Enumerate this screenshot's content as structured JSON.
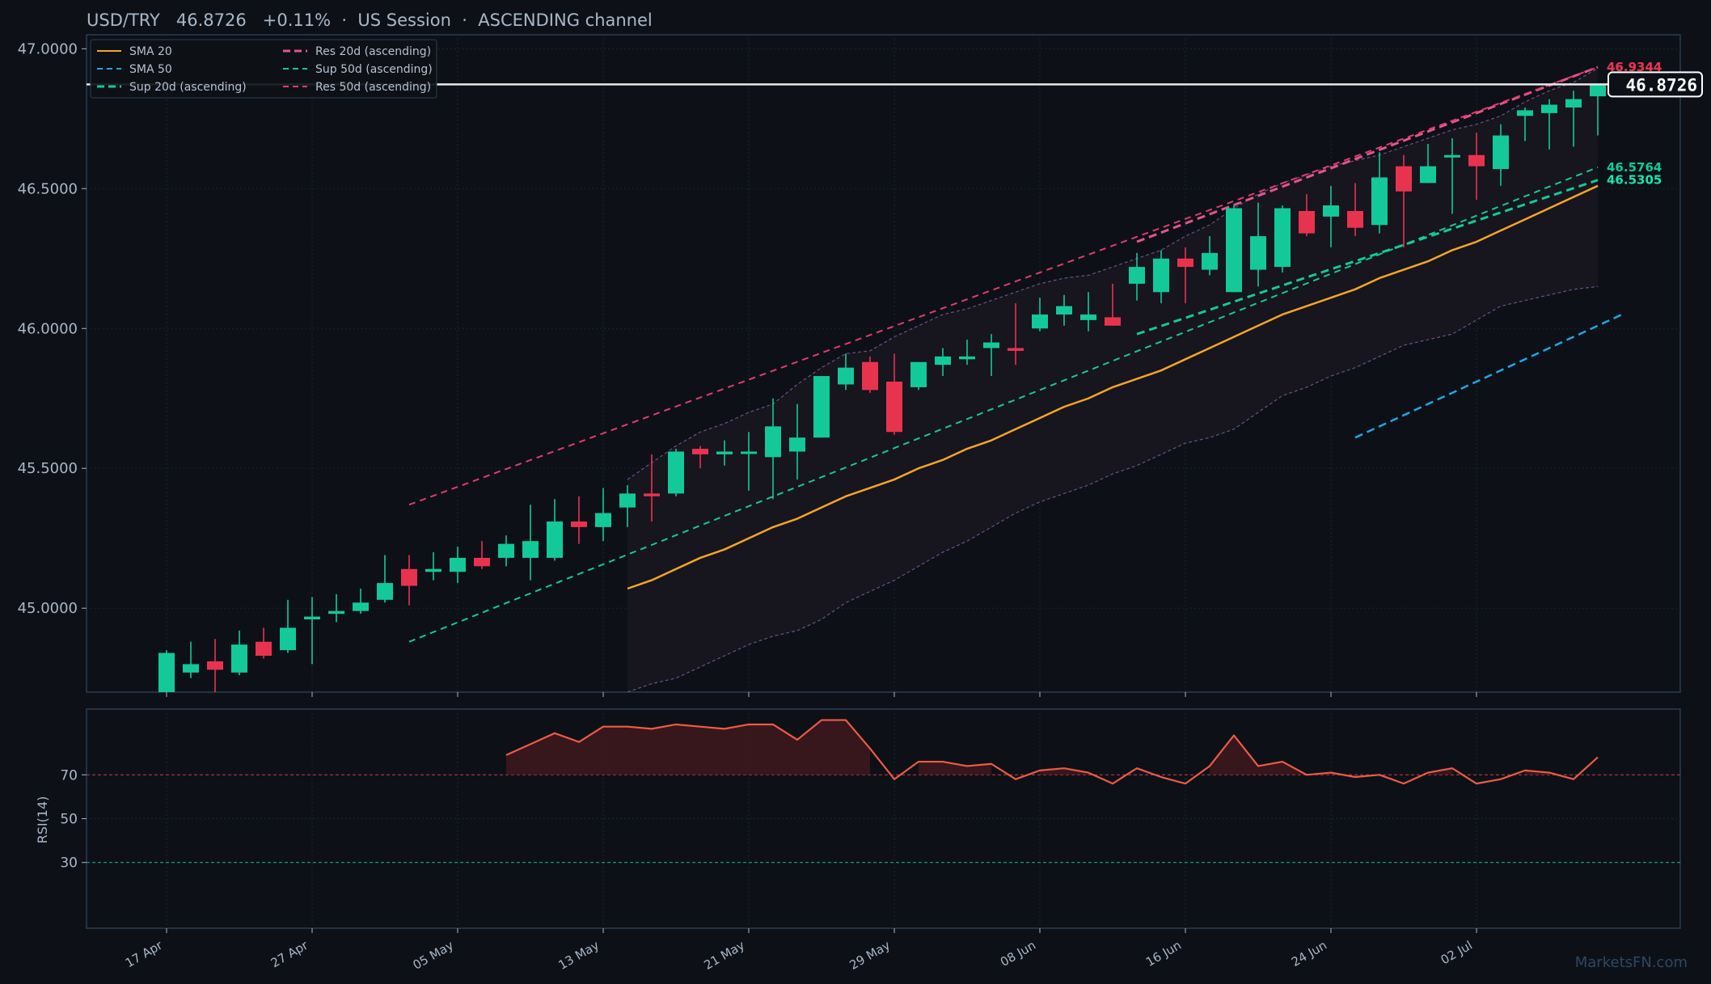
{
  "header": {
    "title": "USD/TRY   46.8726   +0.11%  ·  US Session  ·  ASCENDING channel"
  },
  "watermark": "MarketsFN.com",
  "colors": {
    "background": "#0d1117",
    "up": "#13c99a",
    "down": "#e8334f",
    "sma20": "#f5a623",
    "sma50": "#1ea7e8",
    "support": "#13c99a",
    "resistance": "#e23b6a",
    "rsi": "#ef5a43",
    "bands": "#6b4f8c",
    "last_price_line": "#e8e8e8"
  },
  "chart_data": [
    {
      "type": "candlestick",
      "title": "USD/TRY   46.8726   +0.11%  ·  US Session  ·  ASCENDING channel",
      "ylim": [
        44.7,
        47.05
      ],
      "y_ticks": [
        "45.0000",
        "45.5000",
        "46.0000",
        "46.5000",
        "47.0000"
      ],
      "y_tick_values": [
        45.0,
        45.5,
        46.0,
        46.5,
        47.0
      ],
      "x_ticks": [
        "17 Apr",
        "27 Apr",
        "05 May",
        "13 May",
        "21 May",
        "29 May",
        "08 Jun",
        "16 Jun",
        "24 Jun",
        "02 Jul"
      ],
      "x_tick_index": [
        0,
        6,
        12,
        18,
        24,
        30,
        36,
        42,
        48,
        54
      ],
      "grid": true,
      "legend_position": "top-left",
      "candles": [
        {
          "o": 44.7,
          "h": 44.85,
          "l": 44.68,
          "c": 44.84
        },
        {
          "o": 44.77,
          "h": 44.88,
          "l": 44.75,
          "c": 44.8
        },
        {
          "o": 44.81,
          "h": 44.89,
          "l": 44.7,
          "c": 44.78
        },
        {
          "o": 44.77,
          "h": 44.92,
          "l": 44.76,
          "c": 44.87
        },
        {
          "o": 44.88,
          "h": 44.93,
          "l": 44.82,
          "c": 44.83
        },
        {
          "o": 44.85,
          "h": 45.03,
          "l": 44.84,
          "c": 44.93
        },
        {
          "o": 44.96,
          "h": 45.04,
          "l": 44.8,
          "c": 44.97
        },
        {
          "o": 44.98,
          "h": 45.05,
          "l": 44.95,
          "c": 44.99
        },
        {
          "o": 44.99,
          "h": 45.07,
          "l": 44.98,
          "c": 45.02
        },
        {
          "o": 45.03,
          "h": 45.19,
          "l": 45.02,
          "c": 45.09
        },
        {
          "o": 45.14,
          "h": 45.19,
          "l": 45.01,
          "c": 45.08
        },
        {
          "o": 45.13,
          "h": 45.2,
          "l": 45.1,
          "c": 45.14
        },
        {
          "o": 45.13,
          "h": 45.22,
          "l": 45.09,
          "c": 45.18
        },
        {
          "o": 45.18,
          "h": 45.24,
          "l": 45.14,
          "c": 45.15
        },
        {
          "o": 45.18,
          "h": 45.26,
          "l": 45.15,
          "c": 45.23
        },
        {
          "o": 45.18,
          "h": 45.37,
          "l": 45.1,
          "c": 45.24
        },
        {
          "o": 45.18,
          "h": 45.39,
          "l": 45.17,
          "c": 45.31
        },
        {
          "o": 45.31,
          "h": 45.4,
          "l": 45.23,
          "c": 45.29
        },
        {
          "o": 45.29,
          "h": 45.43,
          "l": 45.24,
          "c": 45.34
        },
        {
          "o": 45.36,
          "h": 45.44,
          "l": 45.29,
          "c": 45.41
        },
        {
          "o": 45.41,
          "h": 45.55,
          "l": 45.31,
          "c": 45.4
        },
        {
          "o": 45.41,
          "h": 45.57,
          "l": 45.4,
          "c": 45.56
        },
        {
          "o": 45.57,
          "h": 45.58,
          "l": 45.5,
          "c": 45.55
        },
        {
          "o": 45.55,
          "h": 45.6,
          "l": 45.51,
          "c": 45.56
        },
        {
          "o": 45.56,
          "h": 45.63,
          "l": 45.42,
          "c": 45.56
        },
        {
          "o": 45.54,
          "h": 45.75,
          "l": 45.39,
          "c": 45.65
        },
        {
          "o": 45.56,
          "h": 45.73,
          "l": 45.46,
          "c": 45.61
        },
        {
          "o": 45.61,
          "h": 45.83,
          "l": 45.61,
          "c": 45.83
        },
        {
          "o": 45.8,
          "h": 45.91,
          "l": 45.78,
          "c": 45.86
        },
        {
          "o": 45.88,
          "h": 45.9,
          "l": 45.77,
          "c": 45.78
        },
        {
          "o": 45.81,
          "h": 45.91,
          "l": 45.62,
          "c": 45.63
        },
        {
          "o": 45.79,
          "h": 45.88,
          "l": 45.78,
          "c": 45.88
        },
        {
          "o": 45.87,
          "h": 45.93,
          "l": 45.83,
          "c": 45.9
        },
        {
          "o": 45.89,
          "h": 45.96,
          "l": 45.87,
          "c": 45.9
        },
        {
          "o": 45.93,
          "h": 45.98,
          "l": 45.83,
          "c": 45.95
        },
        {
          "o": 45.93,
          "h": 46.09,
          "l": 45.87,
          "c": 45.92
        },
        {
          "o": 46.0,
          "h": 46.11,
          "l": 45.99,
          "c": 46.05
        },
        {
          "o": 46.05,
          "h": 46.12,
          "l": 46.01,
          "c": 46.08
        },
        {
          "o": 46.03,
          "h": 46.13,
          "l": 45.99,
          "c": 46.05
        },
        {
          "o": 46.04,
          "h": 46.16,
          "l": 46.01,
          "c": 46.01
        },
        {
          "o": 46.16,
          "h": 46.27,
          "l": 46.1,
          "c": 46.22
        },
        {
          "o": 46.13,
          "h": 46.28,
          "l": 46.09,
          "c": 46.25
        },
        {
          "o": 46.25,
          "h": 46.29,
          "l": 46.09,
          "c": 46.22
        },
        {
          "o": 46.21,
          "h": 46.33,
          "l": 46.19,
          "c": 46.27
        },
        {
          "o": 46.13,
          "h": 46.44,
          "l": 46.13,
          "c": 46.43
        },
        {
          "o": 46.21,
          "h": 46.45,
          "l": 46.15,
          "c": 46.33
        },
        {
          "o": 46.22,
          "h": 46.44,
          "l": 46.2,
          "c": 46.43
        },
        {
          "o": 46.42,
          "h": 46.48,
          "l": 46.33,
          "c": 46.34
        },
        {
          "o": 46.4,
          "h": 46.51,
          "l": 46.29,
          "c": 46.44
        },
        {
          "o": 46.42,
          "h": 46.52,
          "l": 46.33,
          "c": 46.36
        },
        {
          "o": 46.37,
          "h": 46.63,
          "l": 46.34,
          "c": 46.54
        },
        {
          "o": 46.58,
          "h": 46.62,
          "l": 46.29,
          "c": 46.49
        },
        {
          "o": 46.52,
          "h": 46.66,
          "l": 46.52,
          "c": 46.58
        },
        {
          "o": 46.62,
          "h": 46.68,
          "l": 46.41,
          "c": 46.62
        },
        {
          "o": 46.62,
          "h": 46.7,
          "l": 46.46,
          "c": 46.58
        },
        {
          "o": 46.57,
          "h": 46.73,
          "l": 46.51,
          "c": 46.69
        },
        {
          "o": 46.76,
          "h": 46.79,
          "l": 46.67,
          "c": 46.78
        },
        {
          "o": 46.77,
          "h": 46.82,
          "l": 46.64,
          "c": 46.8
        },
        {
          "o": 46.79,
          "h": 46.85,
          "l": 46.65,
          "c": 46.82
        },
        {
          "o": 46.83,
          "h": 46.87,
          "l": 46.69,
          "c": 46.87
        }
      ],
      "series": [
        {
          "name": "SMA 20",
          "start": 19,
          "values": [
            45.07,
            45.1,
            45.14,
            45.18,
            45.21,
            45.25,
            45.29,
            45.32,
            45.36,
            45.4,
            45.43,
            45.46,
            45.5,
            45.53,
            45.57,
            45.6,
            45.64,
            45.68,
            45.72,
            45.75,
            45.79,
            45.82,
            45.85,
            45.89,
            45.93,
            45.97,
            46.01,
            46.05,
            46.08,
            46.11,
            46.14,
            46.18,
            46.21,
            46.24,
            46.28,
            46.31,
            46.35,
            46.39,
            46.43,
            46.47,
            46.51
          ]
        },
        {
          "name": "SMA 50",
          "start": 49,
          "values": [
            45.61,
            45.65,
            45.69,
            45.73,
            45.77,
            45.81,
            45.85,
            45.89,
            45.93,
            45.97,
            46.01,
            46.05
          ]
        },
        {
          "name": "Sup 20d (ascending)",
          "start": 40,
          "values": [
            45.98,
            46.5305
          ]
        },
        {
          "name": "Sup 50d (ascending)",
          "start": 10,
          "values": [
            44.88,
            46.5764
          ]
        },
        {
          "name": "Res 20d (ascending)",
          "start": 40,
          "values": [
            46.31,
            46.9344
          ]
        },
        {
          "name": "Res 50d (ascending)",
          "start": 10,
          "values": [
            45.37,
            46.9344
          ]
        }
      ],
      "bands": {
        "start": 19,
        "upper": [
          45.46,
          45.52,
          45.58,
          45.63,
          45.66,
          45.7,
          45.73,
          45.8,
          45.86,
          45.91,
          45.92,
          45.97,
          46.01,
          46.05,
          46.07,
          46.1,
          46.13,
          46.16,
          46.18,
          46.19,
          46.22,
          46.25,
          46.28,
          46.33,
          46.37,
          46.43,
          46.48,
          46.52,
          46.55,
          46.58,
          46.6,
          46.62,
          46.65,
          46.68,
          46.71,
          46.73,
          46.76,
          46.81,
          46.85,
          46.88,
          46.93
        ],
        "lower": [
          44.7,
          44.73,
          44.75,
          44.79,
          44.83,
          44.87,
          44.9,
          44.92,
          44.96,
          45.02,
          45.06,
          45.1,
          45.15,
          45.2,
          45.24,
          45.29,
          45.34,
          45.38,
          45.41,
          45.44,
          45.48,
          45.51,
          45.55,
          45.59,
          45.61,
          45.64,
          45.7,
          45.76,
          45.79,
          45.83,
          45.86,
          45.9,
          45.94,
          45.96,
          45.98,
          46.03,
          46.08,
          46.1,
          46.12,
          46.14,
          46.15
        ]
      },
      "level_labels": [
        {
          "text": "46.9344",
          "value": 46.9344,
          "color": "#e23b6a"
        },
        {
          "text": "46.9344",
          "value": 46.9344,
          "color": "#e8334f"
        },
        {
          "text": "46.5764",
          "value": 46.5764,
          "color": "#13c99a"
        },
        {
          "text": "46.5305",
          "value": 46.5305,
          "color": "#19e3b0"
        }
      ],
      "last_price": {
        "text": "46.8726",
        "value": 46.8726
      }
    },
    {
      "type": "line",
      "ylabel": "RSI(14)",
      "ylim": [
        0,
        100
      ],
      "y_ticks": [
        "30",
        "50",
        "70"
      ],
      "y_tick_values": [
        30,
        50,
        70
      ],
      "series": [
        {
          "name": "",
          "start": 14,
          "values": [
            79,
            84,
            89,
            85,
            92,
            92,
            91,
            93,
            92,
            91,
            93,
            93,
            86,
            95,
            95,
            82,
            68,
            76,
            76,
            74,
            75,
            68,
            72,
            73,
            71,
            66,
            73,
            69,
            66,
            74,
            88,
            74,
            76,
            70,
            71,
            69,
            70,
            66,
            71,
            73,
            66,
            68,
            72,
            71,
            68,
            78
          ]
        }
      ]
    }
  ],
  "legend": {
    "items": [
      {
        "label": "SMA 20",
        "color": "#f5a623",
        "dash": "solid"
      },
      {
        "label": "Res 20d (ascending)",
        "color": "#e2558d",
        "dash": "dashed-bold"
      },
      {
        "label": "SMA 50",
        "color": "#1ea7e8",
        "dash": "dashed"
      },
      {
        "label": "Sup 50d (ascending)",
        "color": "#13c99a",
        "dash": "dashed"
      },
      {
        "label": "Sup 20d (ascending)",
        "color": "#13c99a",
        "dash": "dashed-bold"
      },
      {
        "label": "Res 50d (ascending)",
        "color": "#e23b6a",
        "dash": "dashed"
      }
    ]
  }
}
